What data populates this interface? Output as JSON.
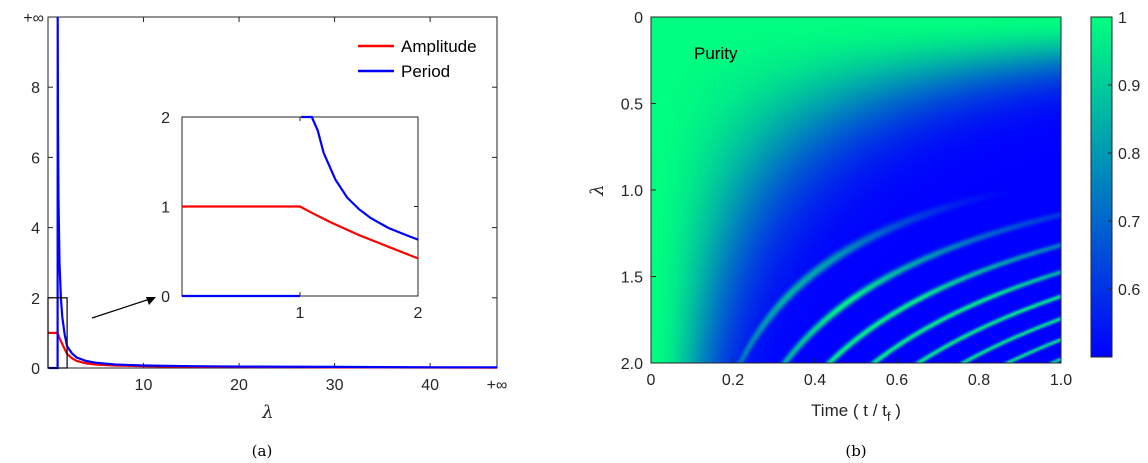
{
  "colors": {
    "amplitude": "#ff0000",
    "period": "#0000ff",
    "heat_low": "#0000ff",
    "heat_high": "#00ff80"
  },
  "chart_data": [
    {
      "type": "line",
      "caption": "(a)",
      "xlabel": "λ",
      "ylabel": "",
      "xlim": [
        0,
        47
      ],
      "ylim": [
        0,
        10
      ],
      "x_ticks": [
        10,
        20,
        30,
        40
      ],
      "x_tick_labels": [
        "10",
        "20",
        "30",
        "40"
      ],
      "x_inf_label": "+∞",
      "y_ticks": [
        0,
        2,
        4,
        6,
        8
      ],
      "y_tick_labels": [
        "0",
        "2",
        "4",
        "6",
        "8"
      ],
      "y_inf_label": "+∞",
      "legend_position": "top-right",
      "series": [
        {
          "name": "Amplitude",
          "color": "#ff0000",
          "formula": "A(λ)=1 for λ≤1; A(λ)=1/λ^(3/4)... sampled",
          "x": [
            0.05,
            1.0,
            1.2,
            1.5,
            2,
            2.5,
            3,
            4,
            5,
            7,
            10,
            15,
            20,
            30,
            40,
            47
          ],
          "y": [
            1.0,
            1.0,
            0.85,
            0.68,
            0.4,
            0.28,
            0.2,
            0.13,
            0.1,
            0.07,
            0.05,
            0.035,
            0.03,
            0.02,
            0.015,
            0.012
          ]
        },
        {
          "name": "Period",
          "color": "#0000ff",
          "x": [
            0.05,
            1.0,
            1.02,
            1.05,
            1.1,
            1.2,
            1.35,
            1.5,
            1.75,
            2,
            2.5,
            3,
            4,
            5,
            7,
            10,
            15,
            20,
            30,
            40,
            47
          ],
          "y": [
            0,
            0,
            10,
            7.0,
            4.8,
            3.0,
            2.0,
            1.45,
            0.95,
            0.62,
            0.42,
            0.3,
            0.2,
            0.15,
            0.1,
            0.07,
            0.05,
            0.04,
            0.03,
            0.02,
            0.02
          ]
        }
      ],
      "inset": {
        "xlim": [
          0,
          2
        ],
        "ylim": [
          0,
          2
        ],
        "x_ticks": [
          1,
          2
        ],
        "x_tick_labels": [
          "1",
          "2"
        ],
        "y_ticks": [
          0,
          1,
          2
        ],
        "y_tick_labels": [
          "0",
          "1",
          "2"
        ],
        "zoom_box": {
          "x": [
            0,
            2
          ],
          "y": [
            0,
            2
          ]
        },
        "series": [
          {
            "name": "Amplitude",
            "color": "#ff0000",
            "x": [
              0.0,
              1.0,
              1.1,
              1.25,
              1.5,
              1.75,
              2.0
            ],
            "y": [
              1.0,
              1.0,
              0.93,
              0.83,
              0.68,
              0.55,
              0.42
            ]
          },
          {
            "name": "Period",
            "color": "#0000ff",
            "x": [
              0.0,
              1.0,
              1.01,
              1.05,
              1.1,
              1.15,
              1.2,
              1.3,
              1.4,
              1.5,
              1.6,
              1.75,
              1.9,
              2.0
            ],
            "y": [
              0,
              0,
              2.0,
              2.6,
              2.2,
              1.85,
              1.6,
              1.3,
              1.1,
              0.97,
              0.87,
              0.76,
              0.68,
              0.63
            ]
          }
        ]
      }
    },
    {
      "type": "heatmap",
      "caption": "(b)",
      "xlabel": "Time ( t / t",
      "xlabel_sub": "f",
      "xlabel_end": " )",
      "ylabel": "λ",
      "annotation": "Purity",
      "xlim": [
        0,
        1.0
      ],
      "ylim": [
        0,
        2.0
      ],
      "x_ticks": [
        0,
        0.2,
        0.4,
        0.6,
        0.8,
        1.0
      ],
      "x_tick_labels": [
        "0",
        "0.2",
        "0.4",
        "0.6",
        "0.8",
        "1.0"
      ],
      "y_ticks": [
        0,
        0.5,
        1.0,
        1.5,
        2.0
      ],
      "y_tick_labels": [
        "0",
        "0.5",
        "1.0",
        "1.5",
        "2.0"
      ],
      "colorbar": {
        "range": [
          0.5,
          1.0
        ],
        "ticks": [
          0.6,
          0.7,
          0.8,
          0.9,
          1.0
        ],
        "tick_labels": [
          "0.6",
          "0.7",
          "0.8",
          "0.9",
          "1"
        ]
      }
    }
  ]
}
